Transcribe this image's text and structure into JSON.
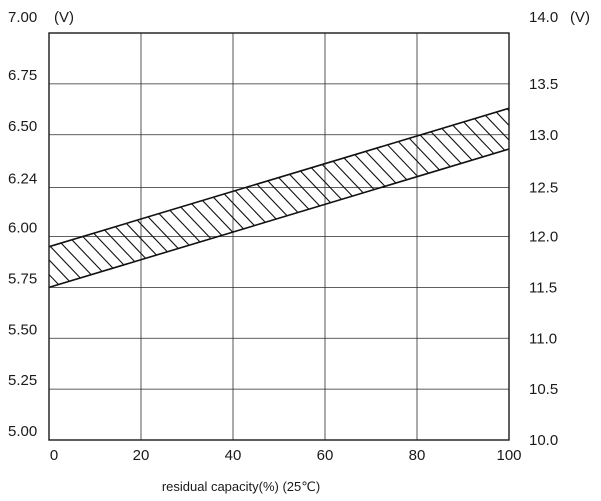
{
  "chart_data": {
    "type": "area",
    "title": "",
    "xlabel": "residual capacity(%) (25℃)",
    "ylabel_left_unit": "(V)",
    "ylabel_right_unit": "(V)",
    "x_ticks": [
      0,
      20,
      40,
      60,
      80,
      100
    ],
    "x_tick_labels": [
      "0",
      "20",
      "40",
      "60",
      "80",
      "100"
    ],
    "y_left_ticks": [
      5.0,
      5.25,
      5.5,
      5.75,
      6.0,
      6.24,
      6.5,
      6.75,
      7.0
    ],
    "y_left_tick_labels": [
      "5.00",
      "5.25",
      "5.50",
      "5.75",
      "6.00",
      "6.24",
      "6.50",
      "6.75",
      "7.00"
    ],
    "y_right_tick_labels": [
      "10.0",
      "10.5",
      "11.0",
      "11.5",
      "12.0",
      "12.5",
      "13.0",
      "13.5",
      "14.0"
    ],
    "xlim": [
      0,
      100
    ],
    "ylim_left": [
      5.0,
      7.0
    ],
    "ylim_right": [
      10.0,
      14.0
    ],
    "grid": true,
    "band": {
      "x": [
        0,
        100
      ],
      "upper": [
        5.95,
        6.63
      ],
      "lower": [
        5.75,
        6.43
      ],
      "fill": "hatched"
    }
  }
}
